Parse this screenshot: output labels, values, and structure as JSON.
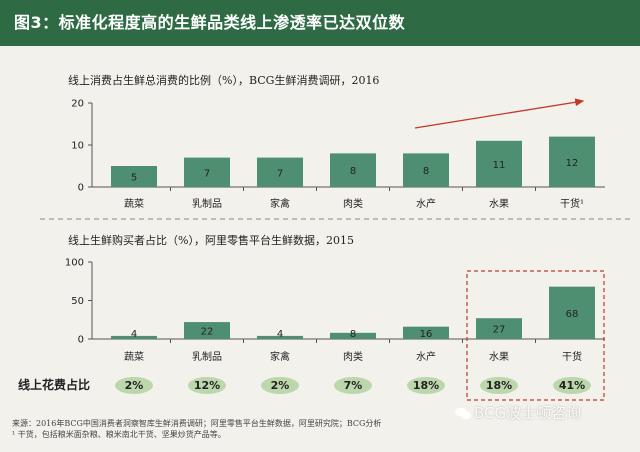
{
  "header": {
    "title": "图3：标准化程度高的生鲜品类线上渗透率已达双位数"
  },
  "colors": {
    "bar": "#4e8f72",
    "header_bg": "#2e6b45",
    "arrow": "#c0392b",
    "highlight_box": "#c0392b",
    "pill": "#bcd7ac"
  },
  "chart_data": [
    {
      "type": "bar",
      "title": "线上消费占生鲜总消费的比例（%），BCG生鲜消费调研，2016",
      "categories": [
        "蔬菜",
        "乳制品",
        "家禽",
        "肉类",
        "水产",
        "水果",
        "干货¹"
      ],
      "values": [
        5,
        7,
        7,
        8,
        8,
        11,
        12
      ],
      "value_labels": [
        "5",
        "7",
        "7",
        "8",
        "8",
        "11",
        "12"
      ],
      "ylim": [
        0,
        20
      ],
      "yticks": [
        "0",
        "10",
        "20"
      ],
      "annotation": "upward trend arrow"
    },
    {
      "type": "bar",
      "title": "线上生鲜购买者占比（%），阿里零售平台生鲜数据，2015",
      "categories": [
        "蔬菜",
        "乳制品",
        "家禽",
        "肉类",
        "水产",
        "水果",
        "干货"
      ],
      "values": [
        4,
        22,
        4,
        8,
        16,
        27,
        68
      ],
      "value_labels": [
        "4",
        "22",
        "4",
        "8",
        "16",
        "27",
        "68"
      ],
      "ylim": [
        0,
        100
      ],
      "yticks": [
        "0",
        "50",
        "100"
      ],
      "highlight": [
        "水果",
        "干货"
      ]
    }
  ],
  "spend_row": {
    "label": "线上花费占比",
    "values": [
      "2%",
      "12%",
      "2%",
      "7%",
      "18%",
      "18%",
      "41%"
    ]
  },
  "source": {
    "line1": "来源：2016年BCG中国消费者洞察智库生鲜消费调研；阿里零售平台生鲜数据，阿里研究院；BCG分析",
    "line2": "¹ 干货，包括粮米面杂粮、粮米南北干货、坚果炒货产品等。"
  },
  "watermark": "BCG波士顿咨询"
}
